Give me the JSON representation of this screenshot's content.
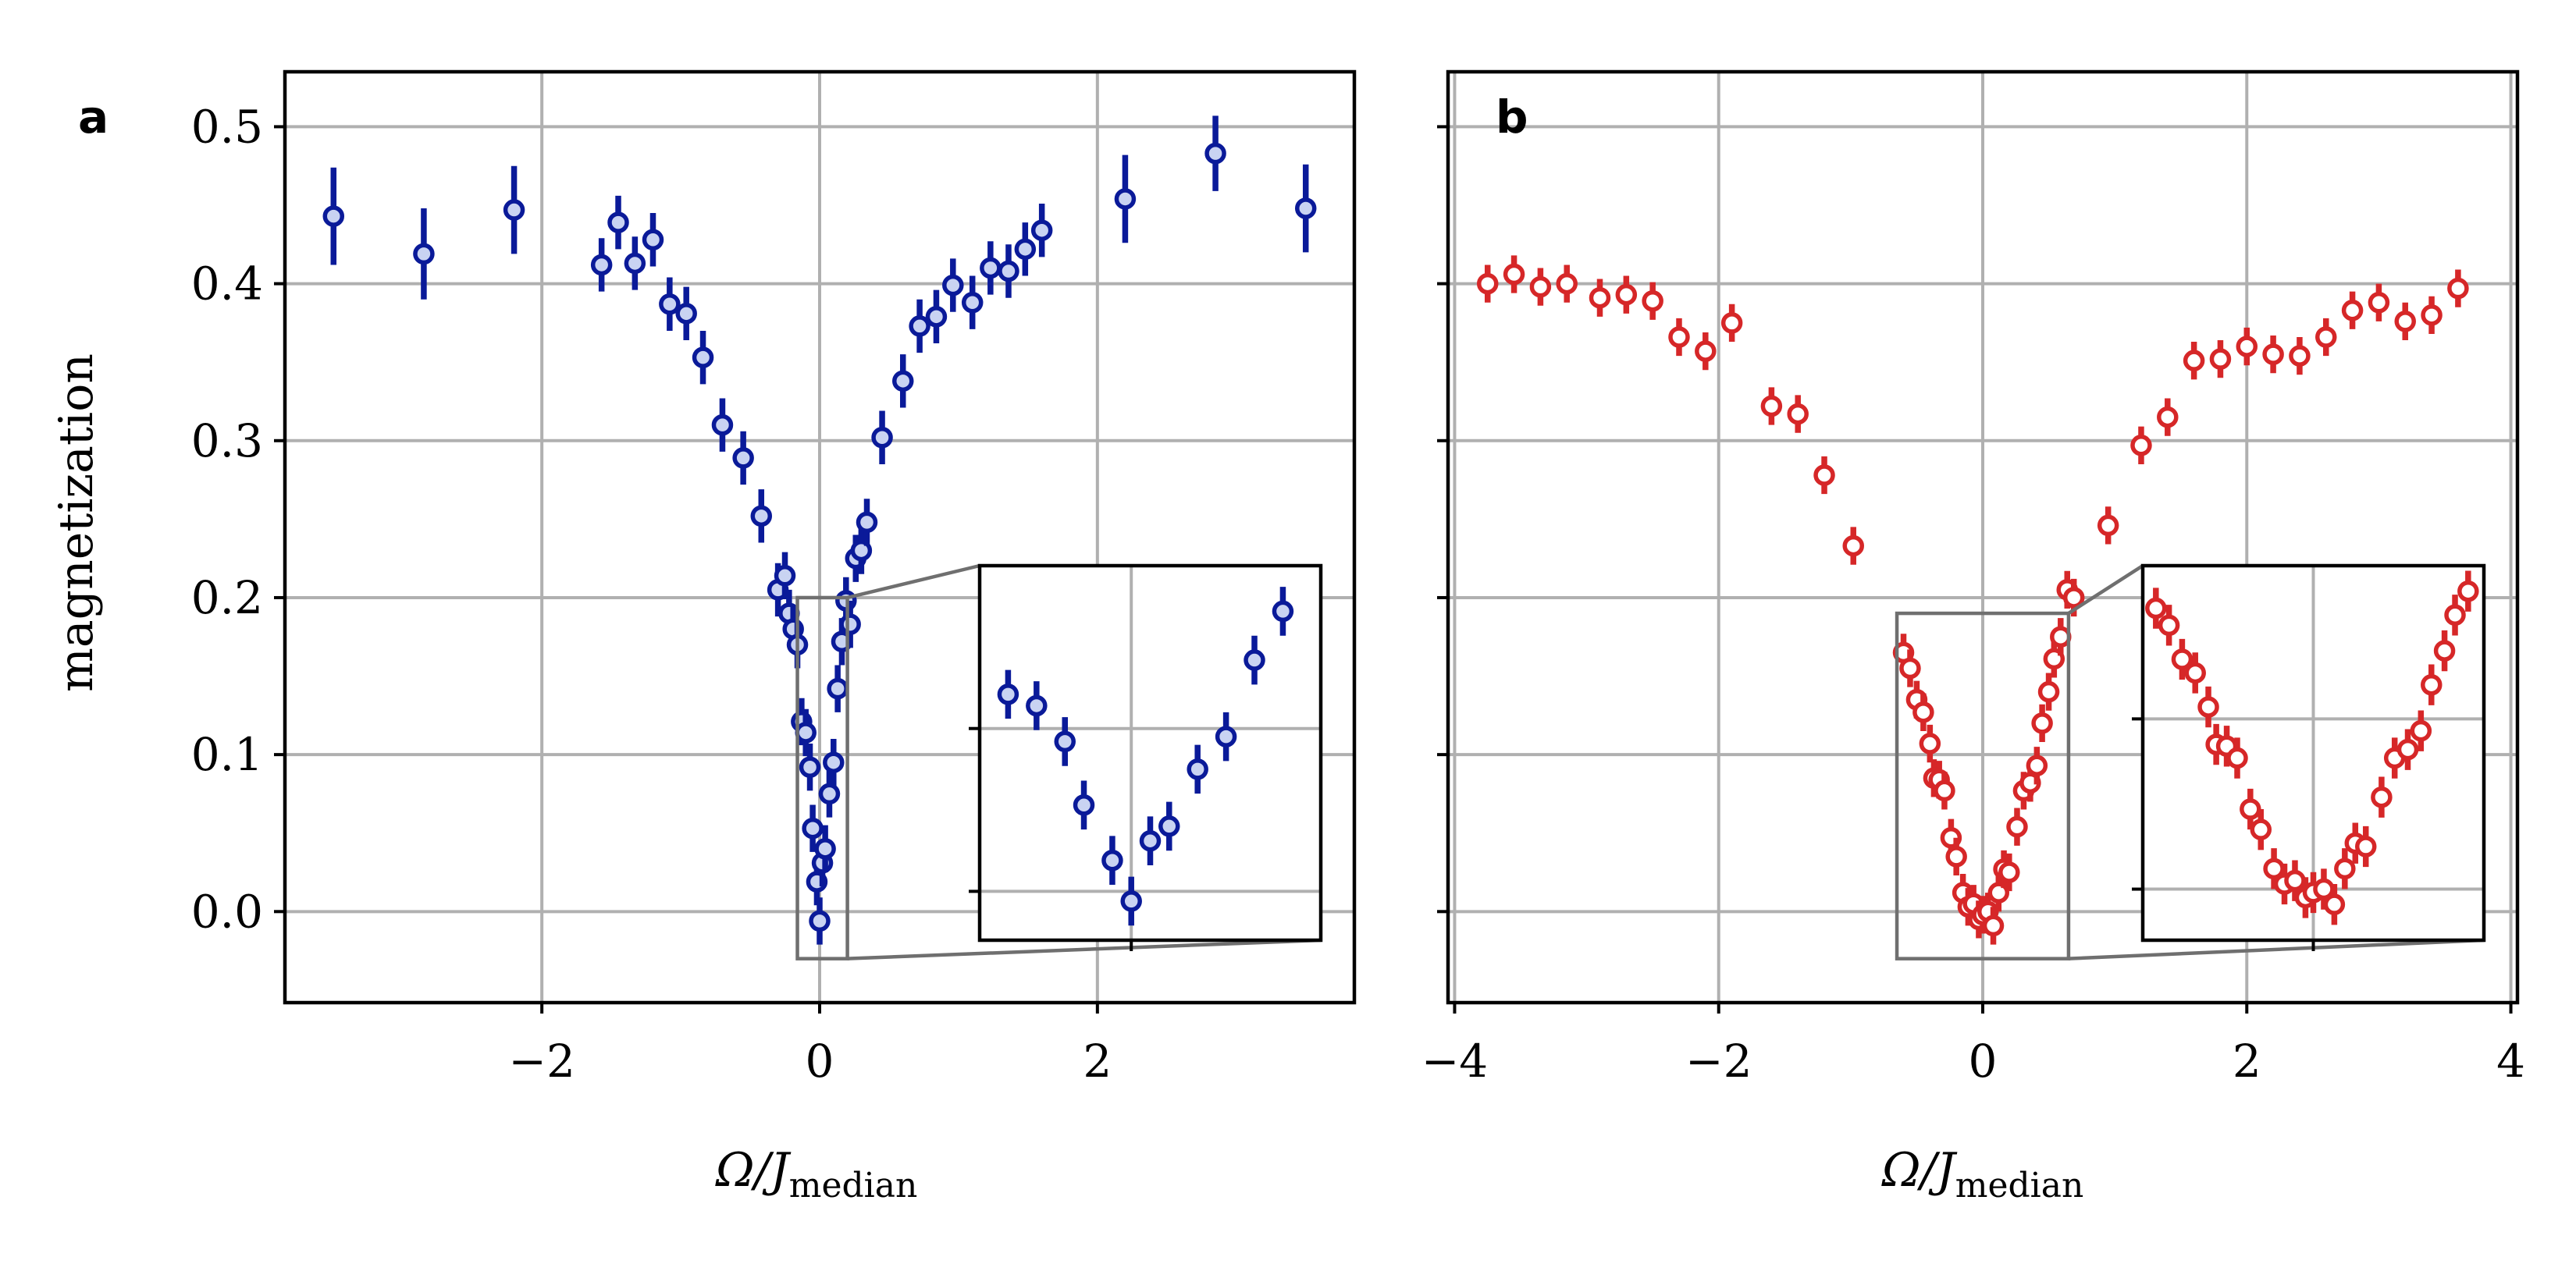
{
  "chart_data": [
    {
      "type": "scatter",
      "panel_label": "a",
      "xlabel": "Ω/J",
      "xlabel_sub": "median",
      "ylabel": "magnetization",
      "xlim": [
        -3.85,
        3.85
      ],
      "ylim": [
        -0.058,
        0.535
      ],
      "xticks": [
        -2,
        0,
        2
      ],
      "xtick_labels": [
        "−2",
        "0",
        "2"
      ],
      "yticks": [
        0.0,
        0.1,
        0.2,
        0.3,
        0.4,
        0.5
      ],
      "ytick_labels": [
        "0.0",
        "0.1",
        "0.2",
        "0.3",
        "0.4",
        "0.5"
      ],
      "grid": true,
      "color": "#0a1a99",
      "series": [
        {
          "points": [
            [
              -3.5,
              0.443,
              0.031
            ],
            [
              -2.85,
              0.419,
              0.029
            ],
            [
              -2.2,
              0.447,
              0.028
            ],
            [
              -1.57,
              0.412,
              0.017
            ],
            [
              -1.45,
              0.439,
              0.017
            ],
            [
              -1.33,
              0.413,
              0.017
            ],
            [
              -1.2,
              0.428,
              0.017
            ],
            [
              -1.08,
              0.387,
              0.017
            ],
            [
              -0.96,
              0.381,
              0.017
            ],
            [
              -0.84,
              0.353,
              0.017
            ],
            [
              -0.7,
              0.31,
              0.017
            ],
            [
              -0.55,
              0.289,
              0.017
            ],
            [
              -0.42,
              0.252,
              0.017
            ],
            [
              -0.3,
              0.205,
              0.017
            ],
            [
              -0.25,
              0.214,
              0.015
            ],
            [
              -0.22,
              0.19,
              0.015
            ],
            [
              -0.19,
              0.18,
              0.015
            ],
            [
              -0.16,
              0.17,
              0.015
            ],
            [
              -0.13,
              0.121,
              0.015
            ],
            [
              -0.1,
              0.114,
              0.015
            ],
            [
              -0.07,
              0.092,
              0.015
            ],
            [
              -0.05,
              0.053,
              0.015
            ],
            [
              -0.02,
              0.019,
              0.015
            ],
            [
              0.0,
              -0.006,
              0.015
            ],
            [
              0.02,
              0.031,
              0.015
            ],
            [
              0.04,
              0.04,
              0.015
            ],
            [
              0.07,
              0.075,
              0.015
            ],
            [
              0.1,
              0.095,
              0.015
            ],
            [
              0.13,
              0.142,
              0.015
            ],
            [
              0.16,
              0.172,
              0.015
            ],
            [
              0.19,
              0.198,
              0.015
            ],
            [
              0.22,
              0.183,
              0.015
            ],
            [
              0.26,
              0.225,
              0.015
            ],
            [
              0.3,
              0.23,
              0.015
            ],
            [
              0.34,
              0.248,
              0.015
            ],
            [
              0.45,
              0.302,
              0.017
            ],
            [
              0.6,
              0.338,
              0.017
            ],
            [
              0.72,
              0.373,
              0.017
            ],
            [
              0.84,
              0.379,
              0.017
            ],
            [
              0.96,
              0.399,
              0.017
            ],
            [
              1.1,
              0.388,
              0.017
            ],
            [
              1.23,
              0.41,
              0.017
            ],
            [
              1.36,
              0.408,
              0.017
            ],
            [
              1.48,
              0.422,
              0.017
            ],
            [
              1.6,
              0.434,
              0.017
            ],
            [
              2.2,
              0.454,
              0.028
            ],
            [
              2.85,
              0.483,
              0.024
            ],
            [
              3.5,
              0.448,
              0.028
            ]
          ]
        }
      ],
      "inset": {
        "zoom_box": {
          "xlim": [
            -0.16,
            0.2
          ],
          "ylim": [
            -0.03,
            0.2
          ]
        },
        "points": [
          [
            -0.13,
            0.121,
            0.015
          ],
          [
            -0.1,
            0.114,
            0.015
          ],
          [
            -0.07,
            0.092,
            0.015
          ],
          [
            -0.05,
            0.053,
            0.015
          ],
          [
            -0.02,
            0.019,
            0.015
          ],
          [
            0.0,
            -0.006,
            0.015
          ],
          [
            0.02,
            0.031,
            0.015
          ],
          [
            0.04,
            0.04,
            0.015
          ],
          [
            0.07,
            0.075,
            0.015
          ],
          [
            0.1,
            0.095,
            0.015
          ],
          [
            0.13,
            0.142,
            0.015
          ],
          [
            0.16,
            0.172,
            0.015
          ]
        ]
      }
    },
    {
      "type": "scatter",
      "panel_label": "b",
      "xlabel": "Ω/J",
      "xlabel_sub": "median",
      "xlim": [
        -4.05,
        4.05
      ],
      "ylim": [
        -0.058,
        0.535
      ],
      "xticks": [
        -4,
        -2,
        0,
        2,
        4
      ],
      "xtick_labels": [
        "−4",
        "−2",
        "0",
        "2",
        "4"
      ],
      "yticks": [
        0.0,
        0.1,
        0.2,
        0.3,
        0.4,
        0.5
      ],
      "grid": true,
      "color": "#d62728",
      "series": [
        {
          "points": [
            [
              -3.75,
              0.4,
              0.012
            ],
            [
              -3.55,
              0.406,
              0.012
            ],
            [
              -3.35,
              0.398,
              0.012
            ],
            [
              -3.15,
              0.4,
              0.012
            ],
            [
              -2.9,
              0.391,
              0.012
            ],
            [
              -2.7,
              0.393,
              0.012
            ],
            [
              -2.5,
              0.389,
              0.012
            ],
            [
              -2.3,
              0.366,
              0.012
            ],
            [
              -2.1,
              0.357,
              0.012
            ],
            [
              -1.9,
              0.375,
              0.012
            ],
            [
              -1.6,
              0.322,
              0.012
            ],
            [
              -1.4,
              0.317,
              0.012
            ],
            [
              -1.2,
              0.278,
              0.012
            ],
            [
              -0.98,
              0.233,
              0.012
            ],
            [
              -0.6,
              0.165,
              0.012
            ],
            [
              -0.55,
              0.155,
              0.012
            ],
            [
              -0.5,
              0.135,
              0.012
            ],
            [
              -0.45,
              0.127,
              0.012
            ],
            [
              -0.4,
              0.107,
              0.012
            ],
            [
              -0.37,
              0.085,
              0.012
            ],
            [
              -0.33,
              0.084,
              0.012
            ],
            [
              -0.29,
              0.077,
              0.012
            ],
            [
              -0.24,
              0.047,
              0.012
            ],
            [
              -0.2,
              0.035,
              0.012
            ],
            [
              -0.15,
              0.012,
              0.012
            ],
            [
              -0.11,
              0.003,
              0.012
            ],
            [
              -0.07,
              0.005,
              0.012
            ],
            [
              -0.03,
              -0.005,
              0.012
            ],
            [
              0.0,
              -0.002,
              0.012
            ],
            [
              0.04,
              0.0,
              0.012
            ],
            [
              0.08,
              -0.009,
              0.012
            ],
            [
              0.12,
              0.012,
              0.012
            ],
            [
              0.16,
              0.027,
              0.012
            ],
            [
              0.2,
              0.025,
              0.012
            ],
            [
              0.26,
              0.054,
              0.012
            ],
            [
              0.31,
              0.077,
              0.012
            ],
            [
              0.36,
              0.082,
              0.012
            ],
            [
              0.41,
              0.093,
              0.012
            ],
            [
              0.45,
              0.12,
              0.012
            ],
            [
              0.5,
              0.14,
              0.012
            ],
            [
              0.54,
              0.161,
              0.012
            ],
            [
              0.59,
              0.175,
              0.012
            ],
            [
              0.64,
              0.205,
              0.012
            ],
            [
              0.69,
              0.2,
              0.012
            ],
            [
              0.95,
              0.246,
              0.012
            ],
            [
              1.2,
              0.297,
              0.012
            ],
            [
              1.4,
              0.315,
              0.012
            ],
            [
              1.6,
              0.351,
              0.012
            ],
            [
              1.8,
              0.352,
              0.012
            ],
            [
              2.0,
              0.36,
              0.012
            ],
            [
              2.2,
              0.355,
              0.012
            ],
            [
              2.4,
              0.354,
              0.012
            ],
            [
              2.6,
              0.366,
              0.012
            ],
            [
              2.8,
              0.383,
              0.012
            ],
            [
              3.0,
              0.388,
              0.012
            ],
            [
              3.2,
              0.376,
              0.012
            ],
            [
              3.4,
              0.38,
              0.012
            ],
            [
              3.6,
              0.397,
              0.012
            ]
          ]
        }
      ],
      "inset": {
        "zoom_box": {
          "xlim": [
            -0.65,
            0.65
          ],
          "ylim": [
            -0.03,
            0.19
          ]
        },
        "points": [
          [
            -0.6,
            0.165,
            0.012
          ],
          [
            -0.55,
            0.155,
            0.012
          ],
          [
            -0.5,
            0.135,
            0.012
          ],
          [
            -0.45,
            0.127,
            0.012
          ],
          [
            -0.4,
            0.107,
            0.012
          ],
          [
            -0.37,
            0.085,
            0.012
          ],
          [
            -0.33,
            0.084,
            0.012
          ],
          [
            -0.29,
            0.077,
            0.012
          ],
          [
            -0.24,
            0.047,
            0.012
          ],
          [
            -0.2,
            0.035,
            0.012
          ],
          [
            -0.15,
            0.012,
            0.012
          ],
          [
            -0.11,
            0.003,
            0.012
          ],
          [
            -0.07,
            0.005,
            0.012
          ],
          [
            -0.03,
            -0.005,
            0.012
          ],
          [
            0.0,
            -0.002,
            0.012
          ],
          [
            0.04,
            0.0,
            0.012
          ],
          [
            0.08,
            -0.009,
            0.012
          ],
          [
            0.12,
            0.012,
            0.012
          ],
          [
            0.16,
            0.027,
            0.012
          ],
          [
            0.2,
            0.025,
            0.012
          ],
          [
            0.26,
            0.054,
            0.012
          ],
          [
            0.31,
            0.077,
            0.012
          ],
          [
            0.36,
            0.082,
            0.012
          ],
          [
            0.41,
            0.093,
            0.012
          ],
          [
            0.45,
            0.12,
            0.012
          ],
          [
            0.5,
            0.14,
            0.012
          ],
          [
            0.54,
            0.161,
            0.012
          ],
          [
            0.59,
            0.175,
            0.012
          ]
        ]
      }
    }
  ]
}
